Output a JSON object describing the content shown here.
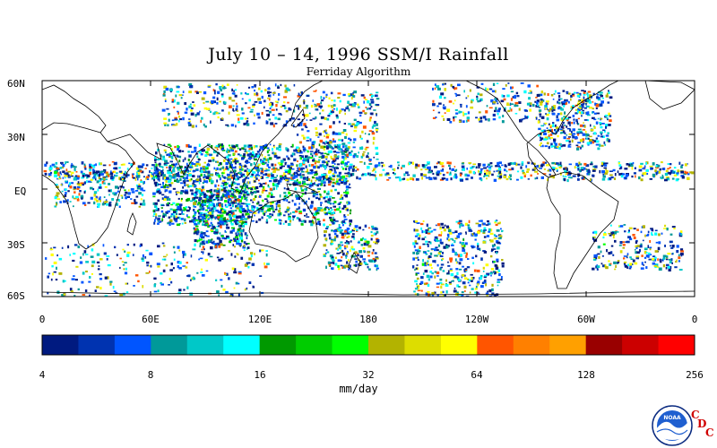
{
  "title": "July 10 – 14, 1996 SSM/I Rainfall",
  "subtitle": "Ferriday Algorithm",
  "lat_labels": [
    "60N",
    "30N",
    "EQ",
    "30S",
    "60S"
  ],
  "lon_labels": [
    "0",
    "60E",
    "120E",
    "180",
    "120W",
    "60W",
    "0"
  ],
  "colorbar": {
    "colors": [
      "#001a80",
      "#0033b0",
      "#0055ff",
      "#009999",
      "#00c8c8",
      "#00ffff",
      "#009900",
      "#00cc00",
      "#00ff00",
      "#b3b300",
      "#dddd00",
      "#ffff00",
      "#ff5500",
      "#ff8000",
      "#ffa000",
      "#990000",
      "#cc0000",
      "#ff0000"
    ],
    "tick_labels": [
      "4",
      "8",
      "16",
      "32",
      "64",
      "128",
      "256"
    ],
    "units": "mm/day"
  },
  "logo": {
    "noaa": "NOAA",
    "cdc": [
      "C",
      "D",
      "C"
    ]
  },
  "icons": {
    "logo": "noaa-logo-icon"
  }
}
